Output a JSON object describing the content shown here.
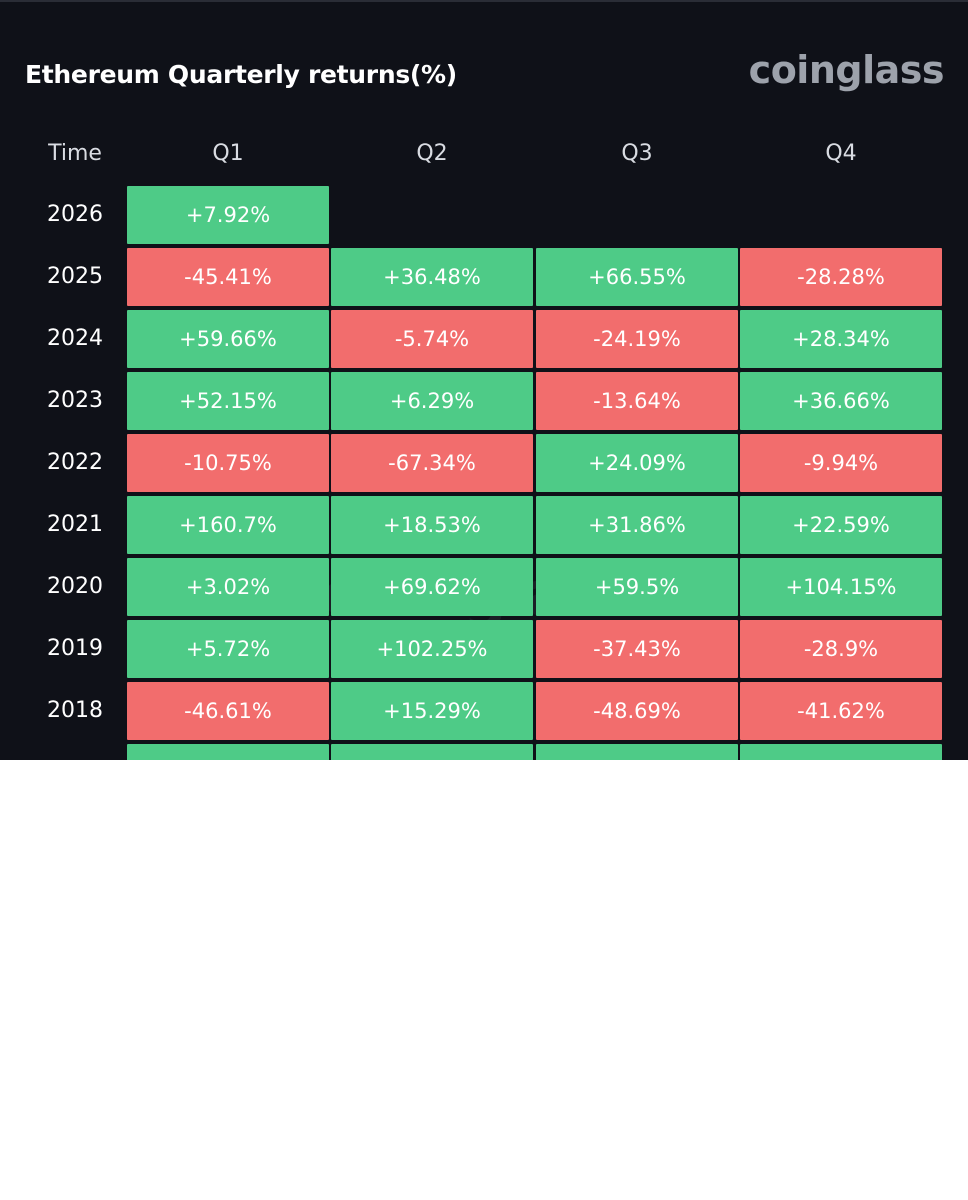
{
  "title": "Ethereum Quarterly returns(%)",
  "logo": "coinglass",
  "watermark": "coinglass",
  "colors": {
    "positive": "#4ecb87",
    "negative": "#f26d6d",
    "background": "#0f1118"
  },
  "chart_data": {
    "type": "table",
    "title": "Ethereum Quarterly returns(%)",
    "columns": [
      "Time",
      "Q1",
      "Q2",
      "Q3",
      "Q4"
    ],
    "rows": [
      {
        "year": "2026",
        "values": [
          "+7.92%",
          null,
          null,
          null
        ]
      },
      {
        "year": "2025",
        "values": [
          "-45.41%",
          "+36.48%",
          "+66.55%",
          "-28.28%"
        ]
      },
      {
        "year": "2024",
        "values": [
          "+59.66%",
          "-5.74%",
          "-24.19%",
          "+28.34%"
        ]
      },
      {
        "year": "2023",
        "values": [
          "+52.15%",
          "+6.29%",
          "-13.64%",
          "+36.66%"
        ]
      },
      {
        "year": "2022",
        "values": [
          "-10.75%",
          "-67.34%",
          "+24.09%",
          "-9.94%"
        ]
      },
      {
        "year": "2021",
        "values": [
          "+160.7%",
          "+18.53%",
          "+31.86%",
          "+22.59%"
        ]
      },
      {
        "year": "2020",
        "values": [
          "+3.02%",
          "+69.62%",
          "+59.5%",
          "+104.15%"
        ]
      },
      {
        "year": "2019",
        "values": [
          "+5.72%",
          "+102.25%",
          "-37.43%",
          "-28.9%"
        ]
      },
      {
        "year": "2018",
        "values": [
          "-46.61%",
          "+15.29%",
          "-48.69%",
          "-41.62%"
        ]
      },
      {
        "year": "",
        "values": [
          "+",
          "+",
          "+",
          "+"
        ]
      }
    ]
  }
}
